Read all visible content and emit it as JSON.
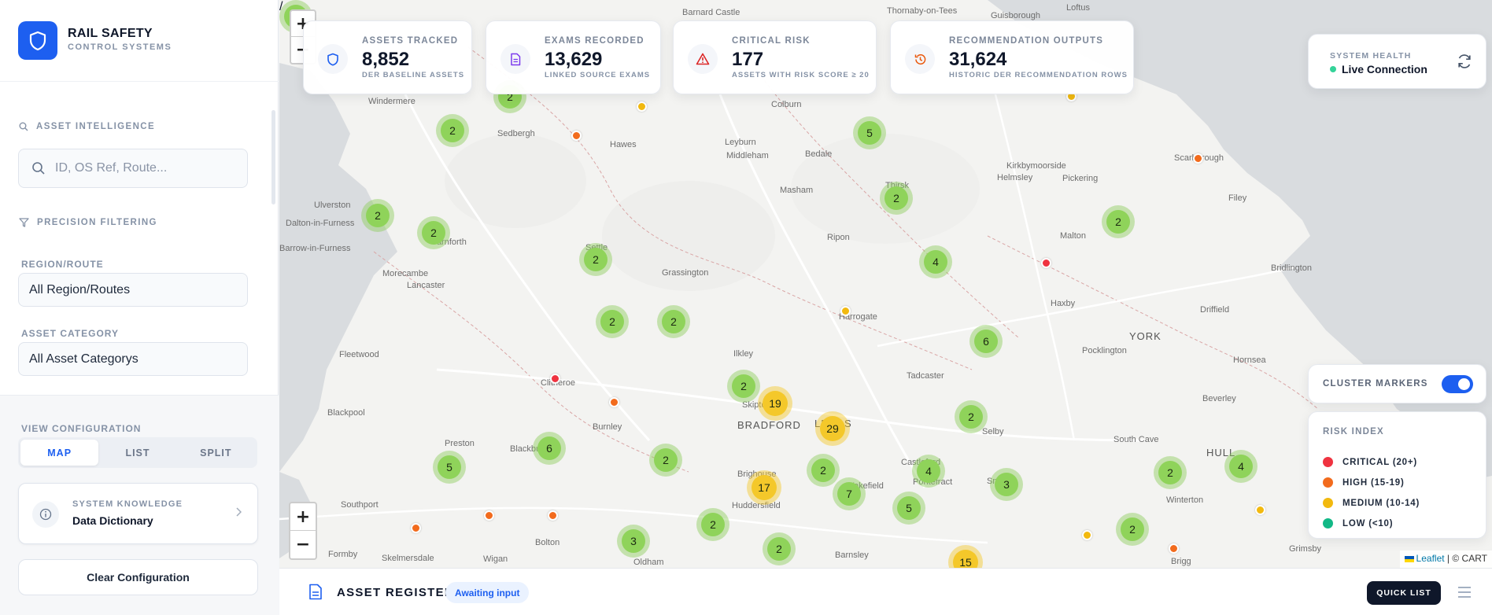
{
  "brand": {
    "title": "RAIL SAFETY",
    "subtitle": "CONTROL SYSTEMS"
  },
  "sidebar": {
    "asset_intel_label": "ASSET INTELLIGENCE",
    "search_placeholder": "ID, OS Ref, Route...",
    "precision_label": "PRECISION FILTERING",
    "region_label": "REGION/ROUTE",
    "region_value": "All Region/Routes",
    "category_label": "ASSET CATEGORY",
    "category_value": "All Asset Categorys",
    "view_label": "VIEW CONFIGURATION",
    "view_modes": [
      "MAP",
      "LIST",
      "SPLIT"
    ],
    "active_view": "MAP",
    "knowledge_kicker": "SYSTEM KNOWLEDGE",
    "knowledge_title": "Data Dictionary",
    "clear_label": "Clear Configuration"
  },
  "stats": [
    {
      "kicker": "ASSETS TRACKED",
      "value": "8,852",
      "sub": "DER BASELINE ASSETS",
      "icon": "shield-icon",
      "color": "#1d5ff0"
    },
    {
      "kicker": "EXAMS RECORDED",
      "value": "13,629",
      "sub": "LINKED SOURCE EXAMS",
      "icon": "document-icon",
      "color": "#7c3aed"
    },
    {
      "kicker": "CRITICAL RISK",
      "value": "177",
      "sub": "ASSETS WITH RISK SCORE ≥ 20",
      "icon": "warning-icon",
      "color": "#dc2626"
    },
    {
      "kicker": "RECOMMENDATION OUTPUTS",
      "value": "31,624",
      "sub": "HISTORIC DER RECOMMENDATION ROWS",
      "icon": "history-icon",
      "color": "#ea580c"
    }
  ],
  "health": {
    "kicker": "SYSTEM HEALTH",
    "status": "Live Connection"
  },
  "cluster_toggle": {
    "label": "CLUSTER MARKERS",
    "enabled": true
  },
  "legend": {
    "title": "RISK INDEX",
    "items": [
      {
        "label": "CRITICAL (20+)",
        "color": "#ef3340"
      },
      {
        "label": "HIGH (15-19)",
        "color": "#f26b1d"
      },
      {
        "label": "MEDIUM (10-14)",
        "color": "#f2b90f"
      },
      {
        "label": "LOW (<10)",
        "color": "#12b886"
      }
    ]
  },
  "map": {
    "zoom_in": "+",
    "zoom_out": "−",
    "attribution_link": "Leaflet",
    "attribution_rest": " | © CART",
    "places": [
      "Barnard Castle",
      "Thornaby-on-Tees",
      "Guisborough",
      "Loftus",
      "Windermere",
      "Sedbergh",
      "Hawes",
      "Leyburn",
      "Middleham",
      "Bedale",
      "Colburn",
      "Thirsk",
      "Kirkbymoorside",
      "Helmsley",
      "Pickering",
      "Scarborough",
      "Filey",
      "Ulverston",
      "Dalton-in-Furness",
      "Barrow-in-Furness",
      "Masham",
      "Ripon",
      "Malton",
      "Bridlington",
      "Morecambe",
      "Lancaster",
      "Carnforth",
      "Settle",
      "Grassington",
      "Harrogate",
      "Haxby",
      "YORK",
      "Driffield",
      "Pocklington",
      "Fleetwood",
      "Skipton",
      "Ilkley",
      "Tadcaster",
      "Hornsea",
      "Clitheroe",
      "Blackpool",
      "Burnley",
      "BRADFORD",
      "LEEDS",
      "Selby",
      "Beverley",
      "Preston",
      "Blackburn",
      "South Cave",
      "HULL",
      "Brighouse",
      "Wakefield",
      "Castleford",
      "Pontefract",
      "Snaith",
      "Huddersfield",
      "Winterton",
      "Southport",
      "Bolton",
      "Barnsley",
      "Grimsby",
      "Formby",
      "Skelmersdale",
      "Wigan",
      "Oldham",
      "Brigg"
    ],
    "clusters": [
      "2",
      "2",
      "2",
      "2",
      "5",
      "2",
      "2",
      "2",
      "4",
      "6",
      "2",
      "2",
      "2",
      "19",
      "29",
      "2",
      "2",
      "4",
      "3",
      "2",
      "4",
      "6",
      "5",
      "2",
      "17",
      "2",
      "7",
      "5",
      "2",
      "3",
      "3",
      "15",
      "2"
    ]
  },
  "bottombar": {
    "title": "ASSET REGISTER",
    "status": "Awaiting input",
    "quick_list": "QUICK LIST"
  }
}
